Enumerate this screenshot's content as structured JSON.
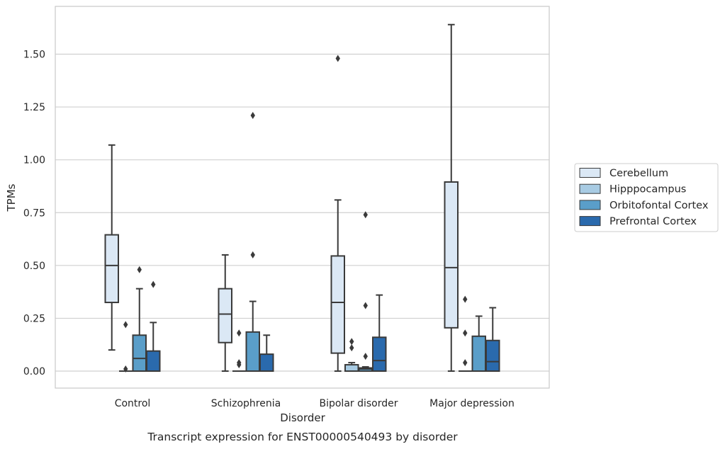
{
  "caption": "Transcript expression for ENST00000540493 by disorder",
  "chart_data": {
    "type": "box",
    "title": "",
    "xlabel": "Disorder",
    "ylabel": "TPMs",
    "ylim": [
      -0.08,
      1.73
    ],
    "yticks": [
      "0.00",
      "0.25",
      "0.50",
      "0.75",
      "1.00",
      "1.25",
      "1.50"
    ],
    "grid": "horizontal",
    "legend_position": "right",
    "categories": [
      "Control",
      "Schizophrenia",
      "Bipolar disorder",
      "Major depression"
    ],
    "series": [
      {
        "name": "Cerebellum",
        "color": "#dbe8f5",
        "boxes": [
          {
            "whisker_low": 0.1,
            "q1": 0.325,
            "median": 0.5,
            "q3": 0.645,
            "whisker_high": 1.07,
            "outliers": []
          },
          {
            "whisker_low": 0.0,
            "q1": 0.135,
            "median": 0.27,
            "q3": 0.39,
            "whisker_high": 0.55,
            "outliers": []
          },
          {
            "whisker_low": 0.0,
            "q1": 0.085,
            "median": 0.325,
            "q3": 0.545,
            "whisker_high": 0.81,
            "outliers": [
              1.48
            ]
          },
          {
            "whisker_low": 0.0,
            "q1": 0.205,
            "median": 0.49,
            "q3": 0.895,
            "whisker_high": 1.64,
            "outliers": []
          }
        ]
      },
      {
        "name": "Hipppocampus",
        "color": "#a8cbe3",
        "boxes": [
          {
            "whisker_low": 0.0,
            "q1": 0.0,
            "median": 0.0,
            "q3": 0.0,
            "whisker_high": 0.0,
            "outliers": [
              0.22,
              0.01
            ]
          },
          {
            "whisker_low": 0.0,
            "q1": 0.0,
            "median": 0.0,
            "q3": 0.0,
            "whisker_high": 0.0,
            "outliers": [
              0.18,
              0.04,
              0.03
            ]
          },
          {
            "whisker_low": 0.0,
            "q1": 0.0,
            "median": 0.0,
            "q3": 0.03,
            "whisker_high": 0.04,
            "outliers": [
              0.14,
              0.11
            ]
          },
          {
            "whisker_low": 0.0,
            "q1": 0.0,
            "median": 0.0,
            "q3": 0.0,
            "whisker_high": 0.0,
            "outliers": [
              0.34,
              0.18,
              0.04
            ]
          }
        ]
      },
      {
        "name": "Orbitofontal Cortex",
        "color": "#5a9ec9",
        "boxes": [
          {
            "whisker_low": 0.0,
            "q1": 0.0,
            "median": 0.06,
            "q3": 0.17,
            "whisker_high": 0.39,
            "outliers": [
              0.48
            ]
          },
          {
            "whisker_low": 0.0,
            "q1": 0.0,
            "median": 0.0,
            "q3": 0.185,
            "whisker_high": 0.33,
            "outliers": [
              1.21,
              0.55
            ]
          },
          {
            "whisker_low": 0.0,
            "q1": 0.0,
            "median": 0.01,
            "q3": 0.015,
            "whisker_high": 0.02,
            "outliers": [
              0.74,
              0.31,
              0.07
            ]
          },
          {
            "whisker_low": 0.0,
            "q1": 0.0,
            "median": 0.0,
            "q3": 0.165,
            "whisker_high": 0.26,
            "outliers": []
          }
        ]
      },
      {
        "name": "Prefrontal Cortex",
        "color": "#2a6aad",
        "boxes": [
          {
            "whisker_low": 0.0,
            "q1": 0.0,
            "median": 0.0,
            "q3": 0.095,
            "whisker_high": 0.23,
            "outliers": [
              0.41
            ]
          },
          {
            "whisker_low": 0.0,
            "q1": 0.0,
            "median": 0.0,
            "q3": 0.08,
            "whisker_high": 0.17,
            "outliers": []
          },
          {
            "whisker_low": 0.0,
            "q1": 0.0,
            "median": 0.05,
            "q3": 0.16,
            "whisker_high": 0.36,
            "outliers": []
          },
          {
            "whisker_low": 0.0,
            "q1": 0.0,
            "median": 0.045,
            "q3": 0.145,
            "whisker_high": 0.3,
            "outliers": []
          }
        ]
      }
    ]
  },
  "colors": {
    "line": "#3a3a3a",
    "grid": "#d0d0d0",
    "frame": "#cccccc"
  }
}
